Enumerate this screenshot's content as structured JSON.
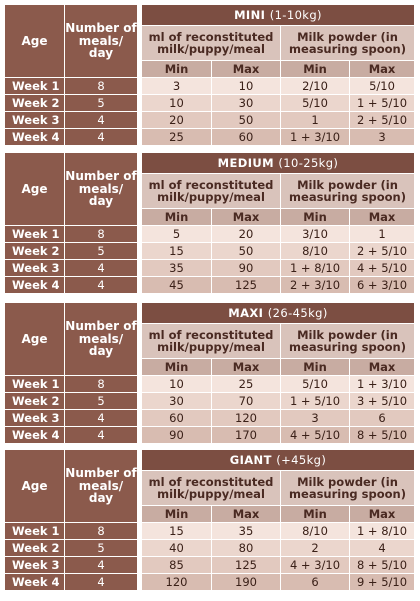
{
  "labels": {
    "age": "Age",
    "meals": "Number of meals/ day",
    "ml": "ml of reconstituted milk/puppy/meal",
    "powder": "Milk powder (in measuring spoon)",
    "min": "Min",
    "max": "Max"
  },
  "sections": [
    {
      "name": "MINI",
      "range": "(1-10kg)",
      "rows": [
        {
          "week": "Week 1",
          "meals": "8",
          "ml_min": "3",
          "ml_max": "10",
          "pw_min": "2/10",
          "pw_max": "5/10"
        },
        {
          "week": "Week 2",
          "meals": "5",
          "ml_min": "10",
          "ml_max": "30",
          "pw_min": "5/10",
          "pw_max": "1 + 5/10"
        },
        {
          "week": "Week 3",
          "meals": "4",
          "ml_min": "20",
          "ml_max": "50",
          "pw_min": "1",
          "pw_max": "2 + 5/10"
        },
        {
          "week": "Week 4",
          "meals": "4",
          "ml_min": "25",
          "ml_max": "60",
          "pw_min": "1 + 3/10",
          "pw_max": "3"
        }
      ]
    },
    {
      "name": "MEDIUM",
      "range": "(10-25kg)",
      "rows": [
        {
          "week": "Week 1",
          "meals": "8",
          "ml_min": "5",
          "ml_max": "20",
          "pw_min": "3/10",
          "pw_max": "1"
        },
        {
          "week": "Week 2",
          "meals": "5",
          "ml_min": "15",
          "ml_max": "50",
          "pw_min": "8/10",
          "pw_max": "2 + 5/10"
        },
        {
          "week": "Week 3",
          "meals": "4",
          "ml_min": "35",
          "ml_max": "90",
          "pw_min": "1 + 8/10",
          "pw_max": "4 + 5/10"
        },
        {
          "week": "Week 4",
          "meals": "4",
          "ml_min": "45",
          "ml_max": "125",
          "pw_min": "2 + 3/10",
          "pw_max": "6 + 3/10"
        }
      ]
    },
    {
      "name": "MAXI",
      "range": "(26-45kg)",
      "rows": [
        {
          "week": "Week 1",
          "meals": "8",
          "ml_min": "10",
          "ml_max": "25",
          "pw_min": "5/10",
          "pw_max": "1 + 3/10"
        },
        {
          "week": "Week 2",
          "meals": "5",
          "ml_min": "30",
          "ml_max": "70",
          "pw_min": "1 + 5/10",
          "pw_max": "3 + 5/10"
        },
        {
          "week": "Week 3",
          "meals": "4",
          "ml_min": "60",
          "ml_max": "120",
          "pw_min": "3",
          "pw_max": "6"
        },
        {
          "week": "Week 4",
          "meals": "4",
          "ml_min": "90",
          "ml_max": "170",
          "pw_min": "4 + 5/10",
          "pw_max": "8 + 5/10"
        }
      ]
    },
    {
      "name": "GIANT",
      "range": "(+45kg)",
      "rows": [
        {
          "week": "Week 1",
          "meals": "8",
          "ml_min": "15",
          "ml_max": "35",
          "pw_min": "8/10",
          "pw_max": "1 + 8/10"
        },
        {
          "week": "Week 2",
          "meals": "5",
          "ml_min": "40",
          "ml_max": "80",
          "pw_min": "2",
          "pw_max": "4"
        },
        {
          "week": "Week 3",
          "meals": "4",
          "ml_min": "85",
          "ml_max": "125",
          "pw_min": "4 + 3/10",
          "pw_max": "8 + 5/10"
        },
        {
          "week": "Week 4",
          "meals": "4",
          "ml_min": "120",
          "ml_max": "190",
          "pw_min": "6",
          "pw_max": "9 + 5/10"
        }
      ]
    }
  ]
}
